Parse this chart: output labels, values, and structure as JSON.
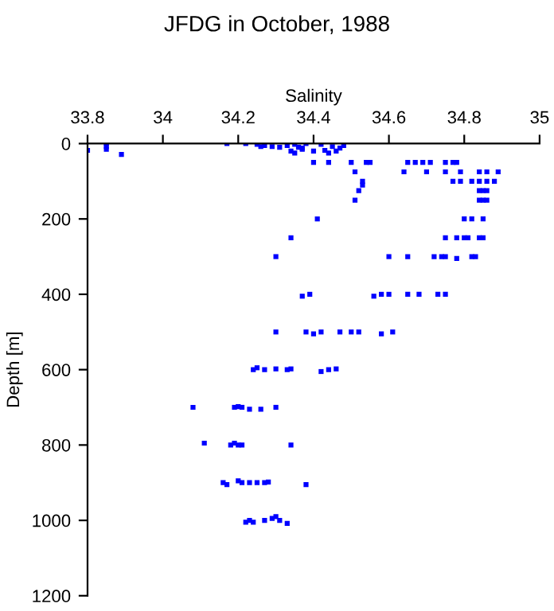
{
  "chart_data": {
    "type": "scatter",
    "title": "JFDG in October, 1988",
    "xlabel": "Salinity",
    "ylabel": "Depth [m]",
    "xlim": [
      33.8,
      35
    ],
    "xticks": [
      33.8,
      34,
      34.2,
      34.4,
      34.6,
      34.8,
      35
    ],
    "ylim": [
      1200,
      0
    ],
    "yticks": [
      0,
      200,
      400,
      600,
      800,
      1000,
      1200
    ],
    "grid": false,
    "marker": "square",
    "series": [
      {
        "color": "#0000ff",
        "x": [
          33.8,
          33.85,
          33.85,
          33.85,
          33.89,
          34.17,
          34.22,
          34.25,
          34.26,
          34.27,
          34.29,
          34.31,
          34.33,
          34.34,
          34.35,
          34.36,
          34.37,
          34.38,
          34.4,
          34.35,
          34.37,
          34.42,
          34.43,
          34.45,
          34.46,
          34.48,
          34.44,
          34.47,
          34.4,
          34.44,
          34.5,
          34.54,
          34.55,
          34.65,
          34.67,
          34.69,
          34.71,
          34.75,
          34.77,
          34.78,
          34.51,
          34.64,
          34.7,
          34.75,
          34.79,
          34.84,
          34.86,
          34.89,
          34.53,
          34.53,
          34.77,
          34.79,
          34.82,
          34.84,
          34.86,
          34.88,
          34.52,
          34.84,
          34.85,
          34.86,
          34.51,
          34.84,
          34.85,
          34.86,
          34.41,
          34.8,
          34.82,
          34.85,
          34.34,
          34.75,
          34.78,
          34.8,
          34.81,
          34.84,
          34.85,
          34.3,
          34.6,
          34.65,
          34.72,
          34.74,
          34.75,
          34.78,
          34.82,
          34.83,
          34.37,
          34.39,
          34.56,
          34.58,
          34.6,
          34.65,
          34.68,
          34.73,
          34.75,
          34.3,
          34.38,
          34.4,
          34.42,
          34.47,
          34.5,
          34.52,
          34.58,
          34.61,
          34.24,
          34.25,
          34.27,
          34.3,
          34.33,
          34.34,
          34.42,
          34.44,
          34.46,
          34.08,
          34.19,
          34.2,
          34.21,
          34.23,
          34.26,
          34.3,
          34.11,
          34.18,
          34.19,
          34.2,
          34.21,
          34.34,
          34.16,
          34.17,
          34.2,
          34.21,
          34.23,
          34.25,
          34.27,
          34.28,
          34.38,
          34.22,
          34.23,
          34.24,
          34.27,
          34.29,
          34.3,
          34.31,
          34.33
        ],
        "values": [
          18,
          0,
          8,
          15,
          29,
          0,
          0,
          2,
          8,
          5,
          8,
          10,
          5,
          20,
          2,
          10,
          15,
          0,
          20,
          25,
          12,
          2,
          18,
          8,
          20,
          5,
          25,
          12,
          50,
          50,
          50,
          50,
          50,
          50,
          50,
          50,
          50,
          50,
          50,
          50,
          75,
          75,
          75,
          75,
          75,
          75,
          75,
          75,
          100,
          110,
          100,
          100,
          100,
          100,
          100,
          100,
          125,
          125,
          125,
          125,
          150,
          150,
          150,
          150,
          200,
          200,
          200,
          200,
          250,
          250,
          250,
          250,
          250,
          250,
          250,
          300,
          300,
          300,
          300,
          300,
          300,
          305,
          300,
          300,
          405,
          400,
          405,
          400,
          400,
          400,
          400,
          400,
          400,
          500,
          500,
          505,
          500,
          500,
          500,
          500,
          505,
          500,
          600,
          595,
          600,
          598,
          600,
          598,
          605,
          600,
          598,
          700,
          700,
          698,
          700,
          705,
          705,
          700,
          795,
          800,
          795,
          800,
          800,
          800,
          900,
          905,
          895,
          900,
          900,
          900,
          900,
          898,
          905,
          1005,
          1000,
          1005,
          1000,
          995,
          990,
          1000,
          1008
        ]
      }
    ]
  }
}
